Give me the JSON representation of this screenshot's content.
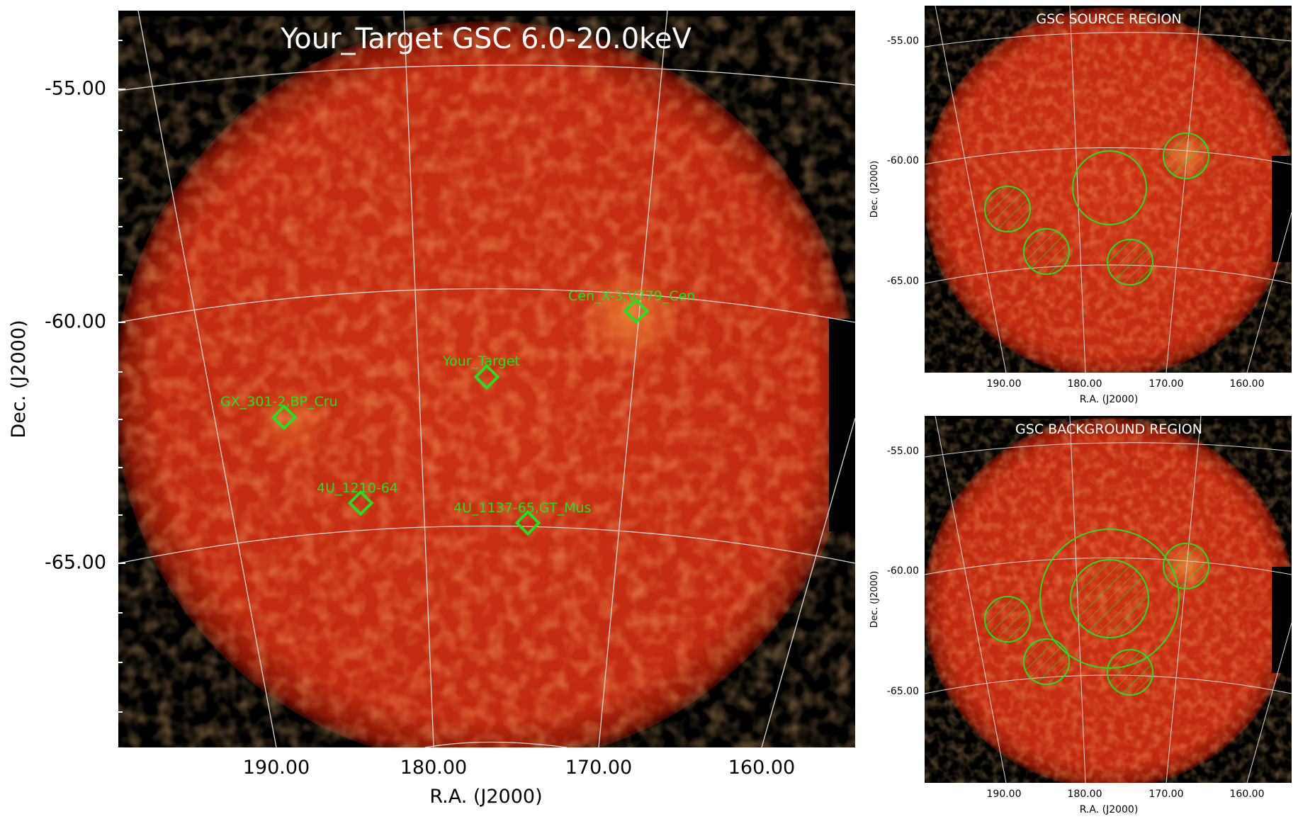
{
  "colors": {
    "background": "#000000",
    "map_fill": "#c42a10",
    "map_edge": "#7a1404",
    "grid": "#d8d8d8",
    "marker": "#22e022",
    "title_text": "#ffffff",
    "axis_text": "#000000"
  },
  "main_panel": {
    "title": "Your_Target GSC 6.0-20.0keV",
    "xlabel": "R.A. (J2000)",
    "ylabel": "Dec. (J2000)",
    "xticks": [
      "190.00",
      "180.00",
      "170.00",
      "160.00"
    ],
    "yticks": [
      "-55.00",
      "-60.00",
      "-65.00"
    ],
    "sources": [
      {
        "label": "Cen_X-3,V779_Cen",
        "marker": "diamond"
      },
      {
        "label": "Your_Target",
        "marker": "diamond"
      },
      {
        "label": "GX_301-2,BP_Cru",
        "marker": "diamond"
      },
      {
        "label": "4U_1210-64",
        "marker": "diamond"
      },
      {
        "label": "4U_1137-65,GT_Mus",
        "marker": "diamond"
      }
    ]
  },
  "source_panel": {
    "title": "GSC SOURCE REGION",
    "xlabel": "R.A. (J2000)",
    "ylabel": "Dec. (J2000)",
    "xticks": [
      "190.00",
      "180.00",
      "170.00",
      "160.00"
    ],
    "yticks": [
      "-55.00",
      "-60.00",
      "-65.00"
    ]
  },
  "background_panel": {
    "title": "GSC BACKGROUND REGION",
    "xlabel": "R.A. (J2000)",
    "ylabel": "Dec. (J2000)",
    "xticks": [
      "190.00",
      "180.00",
      "170.00",
      "160.00"
    ],
    "yticks": [
      "-55.00",
      "-60.00",
      "-65.00"
    ]
  }
}
